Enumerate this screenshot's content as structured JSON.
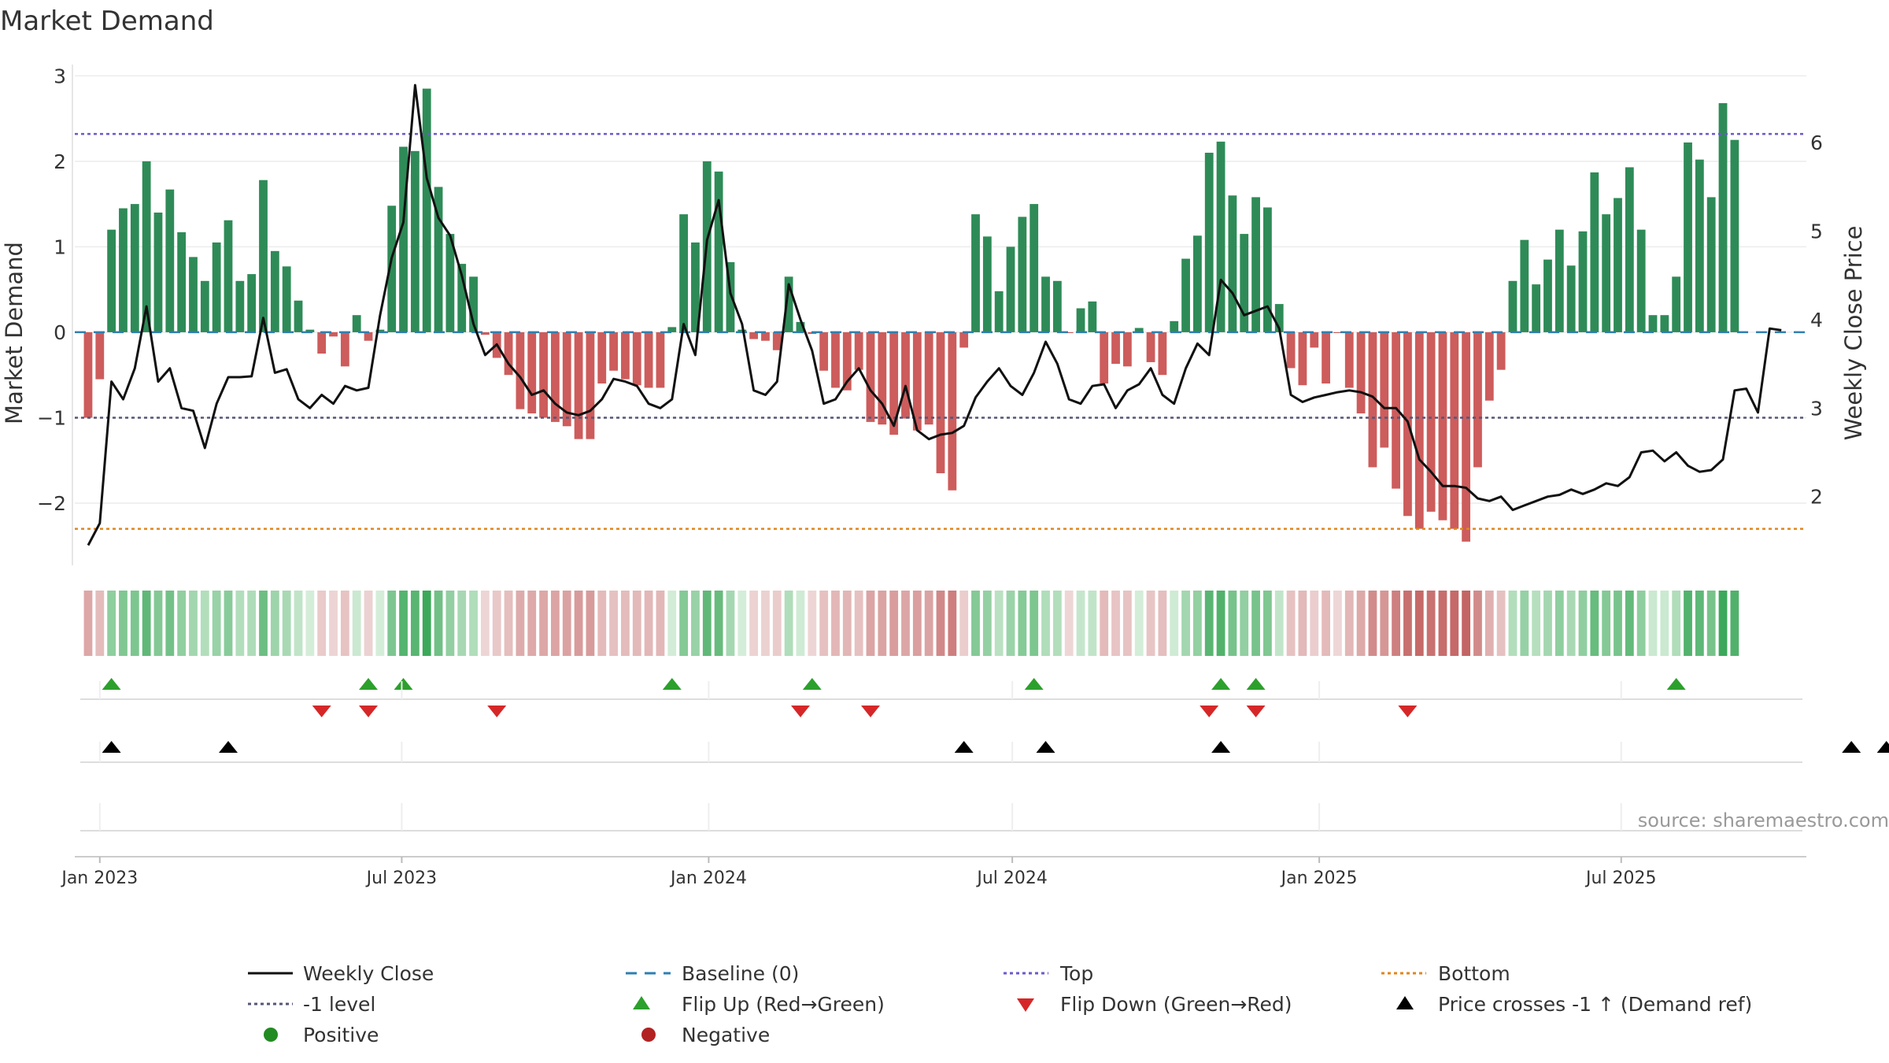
{
  "chart_data": {
    "type": "bar",
    "title": "Market Demand",
    "ylabel": "Market Demand",
    "y2label": "Weekly Close Price",
    "ylim": [
      -2.7,
      3.15
    ],
    "y2lim": [
      1.25,
      6.9
    ],
    "yticks": [
      3,
      2,
      1,
      0,
      -1,
      -2
    ],
    "yticklabels": [
      "3",
      "2",
      "1",
      "0",
      "−1",
      "−2"
    ],
    "y2ticks": [
      6,
      5,
      4,
      3,
      2
    ],
    "y2ticklabels": [
      "6",
      "5",
      "4",
      "3",
      "2"
    ],
    "x_start": "2022-12-25",
    "x_step_days": 7,
    "x_range_days": [
      -8,
      1030
    ],
    "xticks": [
      {
        "label": "Jan 2023",
        "day": 7
      },
      {
        "label": "Jul 2023",
        "day": 188
      },
      {
        "label": "Jan 2024",
        "day": 372
      },
      {
        "label": "Jul 2024",
        "day": 554
      },
      {
        "label": "Jan 2025",
        "day": 738
      },
      {
        "label": "Jul 2025",
        "day": 919
      }
    ],
    "reference_lines": {
      "top": 2.32,
      "minus_one": -1,
      "bottom": -2.3,
      "baseline": 0
    },
    "demand": [
      -1.0,
      -0.55,
      1.2,
      1.45,
      1.5,
      2.0,
      1.4,
      1.67,
      1.17,
      0.88,
      0.6,
      1.05,
      1.31,
      0.6,
      0.68,
      1.78,
      0.95,
      0.77,
      0.37,
      0.03,
      -0.25,
      -0.05,
      -0.4,
      0.2,
      -0.1,
      0.03,
      1.48,
      2.17,
      2.12,
      2.85,
      1.7,
      1.15,
      0.8,
      0.65,
      -0.03,
      -0.3,
      -0.5,
      -0.9,
      -0.95,
      -1.0,
      -1.05,
      -1.1,
      -1.25,
      -1.25,
      -0.6,
      -0.45,
      -0.55,
      -0.62,
      -0.65,
      -0.65,
      0.06,
      1.38,
      1.05,
      2.0,
      1.88,
      0.82,
      0.03,
      -0.08,
      -0.1,
      -0.21,
      0.65,
      0.12,
      -0.02,
      -0.45,
      -0.65,
      -0.68,
      -0.44,
      -1.05,
      -1.08,
      -1.2,
      -1.01,
      -1.15,
      -1.08,
      -1.65,
      -1.85,
      -0.18,
      1.38,
      1.12,
      0.48,
      1.0,
      1.35,
      1.5,
      0.65,
      0.6,
      -0.01,
      0.28,
      0.36,
      -0.6,
      -0.37,
      -0.4,
      0.05,
      -0.35,
      -0.5,
      0.13,
      0.86,
      1.13,
      2.1,
      2.23,
      1.6,
      1.15,
      1.58,
      1.46,
      0.33,
      -0.42,
      -0.62,
      -0.18,
      -0.6,
      -0.01,
      -0.65,
      -0.95,
      -1.58,
      -1.35,
      -1.83,
      -2.15,
      -2.3,
      -2.1,
      -2.2,
      -2.3,
      -2.45,
      -1.58,
      -0.8,
      -0.44,
      0.6,
      1.08,
      0.56,
      0.85,
      1.2,
      0.78,
      1.18,
      1.87,
      1.38,
      1.57,
      1.93,
      1.2,
      0.2,
      0.2,
      0.65,
      2.22,
      2.02,
      1.58,
      2.68,
      2.25
    ],
    "close": [
      1.45,
      1.7,
      3.3,
      3.1,
      3.45,
      4.15,
      3.3,
      3.45,
      3.0,
      2.97,
      2.55,
      3.05,
      3.35,
      3.35,
      3.36,
      4.02,
      3.4,
      3.44,
      3.1,
      3.0,
      3.15,
      3.05,
      3.25,
      3.2,
      3.23,
      4.05,
      4.7,
      5.1,
      6.65,
      5.6,
      5.15,
      4.95,
      4.5,
      3.95,
      3.6,
      3.72,
      3.5,
      3.35,
      3.15,
      3.2,
      3.05,
      2.95,
      2.92,
      2.97,
      3.1,
      3.33,
      3.3,
      3.25,
      3.05,
      3.0,
      3.1,
      3.95,
      3.6,
      4.9,
      5.35,
      4.3,
      3.95,
      3.2,
      3.15,
      3.3,
      4.4,
      4.0,
      3.65,
      3.05,
      3.1,
      3.3,
      3.45,
      3.2,
      3.05,
      2.8,
      3.25,
      2.75,
      2.65,
      2.7,
      2.72,
      2.8,
      3.12,
      3.3,
      3.45,
      3.25,
      3.15,
      3.4,
      3.75,
      3.5,
      3.1,
      3.05,
      3.25,
      3.27,
      3.0,
      3.2,
      3.27,
      3.45,
      3.15,
      3.05,
      3.45,
      3.73,
      3.6,
      4.45,
      4.3,
      4.05,
      4.1,
      4.15,
      3.9,
      3.15,
      3.07,
      3.12,
      3.15,
      3.18,
      3.2,
      3.18,
      3.13,
      3.0,
      3.0,
      2.85,
      2.42,
      2.28,
      2.12,
      2.12,
      2.1,
      1.98,
      1.95,
      2.0,
      1.85,
      1.9,
      1.95,
      2.0,
      2.02,
      2.08,
      2.03,
      2.08,
      2.15,
      2.12,
      2.22,
      2.5,
      2.52,
      2.4,
      2.5,
      2.35,
      2.28,
      2.3,
      2.42,
      3.2,
      3.22,
      2.95,
      3.9,
      3.88
    ],
    "flip_up_weeks": [
      2,
      24,
      27,
      50,
      62,
      81,
      97,
      100,
      136
    ],
    "flip_down_weeks": [
      20,
      24,
      35,
      61,
      67,
      96,
      100,
      113
    ],
    "price_cross_weeks": [
      2,
      12,
      75,
      82,
      97,
      151,
      154
    ],
    "source": "source: sharemaestro.com",
    "legend": {
      "weekly_close": "Weekly Close",
      "baseline": "Baseline (0)",
      "top": "Top",
      "bottom": "Bottom",
      "minus_one": "-1 level",
      "flip_up": "Flip Up (Red→Green)",
      "flip_down": "Flip Down (Green→Red)",
      "price_cross": "Price crosses -1 ↑ (Demand ref)",
      "positive": "Positive",
      "negative": "Negative"
    },
    "colors": {
      "positive": "#2e8b57",
      "negative": "#cd5c5c",
      "close": "#111111",
      "top": "#6a5acd",
      "bottom": "#e0861d",
      "minus_one": "#555577",
      "baseline": "#2e7fb0",
      "flip_up": "#2ca02c",
      "flip_down": "#d62728",
      "cross": "#000000",
      "legend_positive": "#228b22",
      "legend_negative": "#b22222"
    }
  }
}
